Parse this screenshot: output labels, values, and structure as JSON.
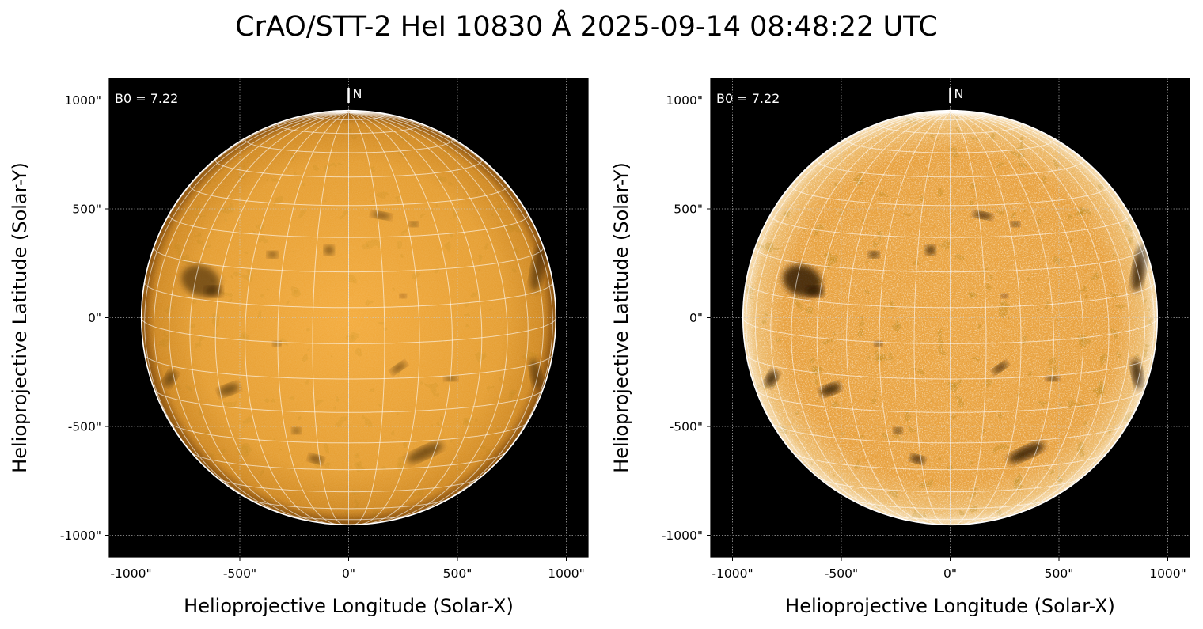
{
  "title": "CrAO/STT-2 HeI 10830 Å 2025-09-14 08:48:22 UTC",
  "colors": {
    "disk_center": "#f3a836",
    "disk_edge": "#b86e0c",
    "background": "#000000",
    "grid": "#ffffff"
  },
  "panels": [
    {
      "name": "left",
      "annotation": "B0 = 7.22",
      "north_label": "N",
      "xlabel": "Helioprojective Longitude (Solar-X)",
      "ylabel": "Helioprojective Latitude (Solar-Y)",
      "xticks": [
        "-1000\"",
        "-500\"",
        "0\"",
        "500\"",
        "1000\""
      ],
      "yticks": [
        "1000\"",
        "500\"",
        "0\"",
        "-500\"",
        "-1000\""
      ],
      "xtick_values": [
        -1000,
        -500,
        0,
        500,
        1000
      ],
      "ytick_values": [
        1000,
        500,
        0,
        -500,
        -1000
      ],
      "axis_range": [
        -1100,
        1100
      ],
      "solar_radius_arcsec": 952,
      "b0_deg": 7.22,
      "style": "smooth"
    },
    {
      "name": "right",
      "annotation": "B0 = 7.22",
      "north_label": "N",
      "xlabel": "Helioprojective Longitude (Solar-X)",
      "ylabel": "Helioprojective Latitude (Solar-Y)",
      "xticks": [
        "-1000\"",
        "-500\"",
        "0\"",
        "500\"",
        "1000\""
      ],
      "yticks": [
        "1000\"",
        "500\"",
        "0\"",
        "-500\"",
        "-1000\""
      ],
      "xtick_values": [
        -1000,
        -500,
        0,
        500,
        1000
      ],
      "ytick_values": [
        1000,
        500,
        0,
        -500,
        -1000
      ],
      "axis_range": [
        -1100,
        1100
      ],
      "solar_radius_arcsec": 952,
      "b0_deg": 7.22,
      "style": "enhanced"
    }
  ],
  "features": [
    {
      "x": -680,
      "y": 170,
      "rx": 90,
      "ry": 70,
      "rot": 20
    },
    {
      "x": -620,
      "y": 120,
      "rx": 40,
      "ry": 25,
      "rot": 0
    },
    {
      "x": -820,
      "y": -280,
      "rx": 25,
      "ry": 40,
      "rot": 30
    },
    {
      "x": -550,
      "y": -330,
      "rx": 50,
      "ry": 25,
      "rot": -20
    },
    {
      "x": 230,
      "y": -230,
      "rx": 40,
      "ry": 15,
      "rot": -35
    },
    {
      "x": 350,
      "y": -620,
      "rx": 90,
      "ry": 28,
      "rot": -25
    },
    {
      "x": 150,
      "y": 470,
      "rx": 45,
      "ry": 15,
      "rot": 10
    },
    {
      "x": 300,
      "y": 430,
      "rx": 20,
      "ry": 12,
      "rot": 0
    },
    {
      "x": -90,
      "y": 310,
      "rx": 22,
      "ry": 22,
      "rot": 0
    },
    {
      "x": 870,
      "y": 230,
      "rx": 30,
      "ry": 110,
      "rot": 10
    },
    {
      "x": 860,
      "y": -260,
      "rx": 25,
      "ry": 70,
      "rot": -10
    },
    {
      "x": -350,
      "y": 290,
      "rx": 25,
      "ry": 15,
      "rot": 0
    },
    {
      "x": -330,
      "y": -120,
      "rx": 18,
      "ry": 12,
      "rot": 0
    },
    {
      "x": 250,
      "y": 100,
      "rx": 15,
      "ry": 10,
      "rot": 0
    },
    {
      "x": -150,
      "y": -650,
      "rx": 35,
      "ry": 18,
      "rot": 15
    },
    {
      "x": 470,
      "y": -280,
      "rx": 30,
      "ry": 12,
      "rot": 0
    },
    {
      "x": -240,
      "y": -520,
      "rx": 20,
      "ry": 15,
      "rot": 0
    }
  ]
}
